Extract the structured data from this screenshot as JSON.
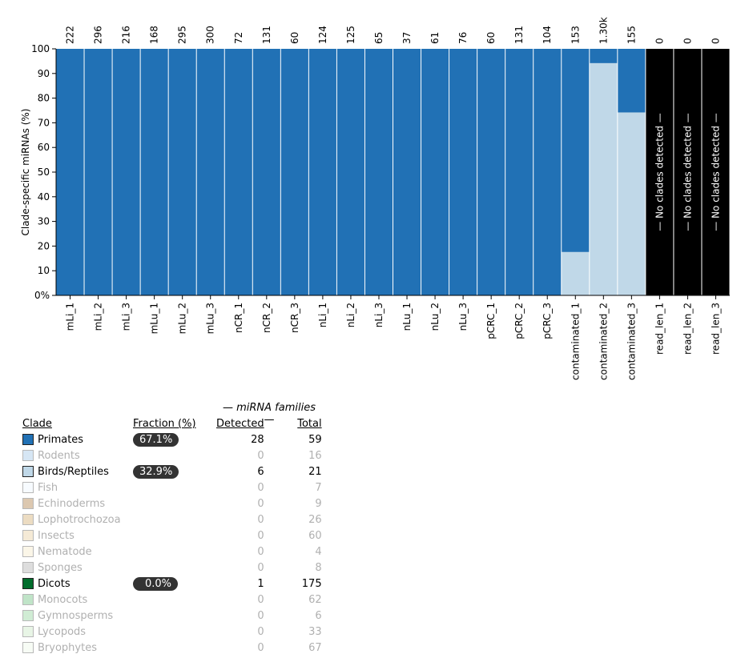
{
  "chart_data": {
    "type": "bar",
    "stacked": true,
    "ylabel": "Clade-specific miRNAs (%)",
    "ylim": [
      0,
      100
    ],
    "yticks": [
      "0%",
      "10",
      "20",
      "30",
      "40",
      "50",
      "60",
      "70",
      "80",
      "90",
      "100"
    ],
    "categories": [
      "mLi_1",
      "mLi_2",
      "mLi_3",
      "mLu_1",
      "mLu_2",
      "mLu_3",
      "nCR_1",
      "nCR_2",
      "nCR_3",
      "nLi_1",
      "nLi_2",
      "nLi_3",
      "nLu_1",
      "nLu_2",
      "nLu_3",
      "pCRC_1",
      "pCRC_2",
      "pCRC_3",
      "contaminated_1",
      "contaminated_2",
      "contaminated_3",
      "read_len_1",
      "read_len_2",
      "read_len_3"
    ],
    "counts": [
      "222",
      "296",
      "216",
      "168",
      "295",
      "300",
      "72",
      "131",
      "60",
      "124",
      "125",
      "65",
      "37",
      "61",
      "76",
      "60",
      "131",
      "104",
      "153",
      "1.30k",
      "155",
      "0",
      "0",
      "0"
    ],
    "series": [
      {
        "name": "Birds/Reptiles",
        "color": "#c0d8e8",
        "values": [
          0,
          0,
          0,
          0,
          0,
          0,
          0,
          0,
          0,
          0,
          0,
          0,
          0,
          0,
          0,
          0,
          0,
          0,
          17.6,
          94.2,
          74.2,
          0,
          0,
          0
        ]
      },
      {
        "name": "Primates",
        "color": "#2171b5",
        "values": [
          100,
          100,
          100,
          100,
          100,
          100,
          100,
          100,
          100,
          100,
          100,
          100,
          100,
          100,
          100,
          100,
          100,
          100,
          82.4,
          5.8,
          25.8,
          0,
          0,
          0
        ]
      }
    ],
    "empty_label": "— No clades detected —",
    "empty_color": "#000000"
  },
  "legend": {
    "families_header": "— miRNA families —",
    "headers": {
      "clade": "Clade",
      "fraction": "Fraction (%)",
      "detected": "Detected",
      "total": "Total"
    },
    "rows": [
      {
        "clade": "Primates",
        "color": "#2171b5",
        "fraction": "67.1%",
        "detected": "28",
        "total": "59",
        "active": true
      },
      {
        "clade": "Rodents",
        "color": "#d6e6f4",
        "fraction": "",
        "detected": "0",
        "total": "16",
        "active": false
      },
      {
        "clade": "Birds/Reptiles",
        "color": "#c0d8e8",
        "fraction": "32.9%",
        "detected": "6",
        "total": "21",
        "active": true
      },
      {
        "clade": "Fish",
        "color": "#f7fbff",
        "fraction": "",
        "detected": "0",
        "total": "7",
        "active": false
      },
      {
        "clade": "Echinoderms",
        "color": "#dcc8b0",
        "fraction": "",
        "detected": "0",
        "total": "9",
        "active": false
      },
      {
        "clade": "Lophotrochozoa",
        "color": "#ecdcc2",
        "fraction": "",
        "detected": "0",
        "total": "26",
        "active": false
      },
      {
        "clade": "Insects",
        "color": "#f5ead6",
        "fraction": "",
        "detected": "0",
        "total": "60",
        "active": false
      },
      {
        "clade": "Nematode",
        "color": "#fbf6e8",
        "fraction": "",
        "detected": "0",
        "total": "4",
        "active": false
      },
      {
        "clade": "Sponges",
        "color": "#dddddd",
        "fraction": "",
        "detected": "0",
        "total": "8",
        "active": false
      },
      {
        "clade": "Dicots",
        "color": "#006d2c",
        "fraction": "0.0%",
        "detected": "1",
        "total": "175",
        "active": true
      },
      {
        "clade": "Monocots",
        "color": "#c0e4c8",
        "fraction": "",
        "detected": "0",
        "total": "62",
        "active": false
      },
      {
        "clade": "Gymnosperms",
        "color": "#d0ecd4",
        "fraction": "",
        "detected": "0",
        "total": "6",
        "active": false
      },
      {
        "clade": "Lycopods",
        "color": "#e8f5e6",
        "fraction": "",
        "detected": "0",
        "total": "33",
        "active": false
      },
      {
        "clade": "Bryophytes",
        "color": "#f7fcf5",
        "fraction": "",
        "detected": "0",
        "total": "67",
        "active": false
      }
    ]
  }
}
